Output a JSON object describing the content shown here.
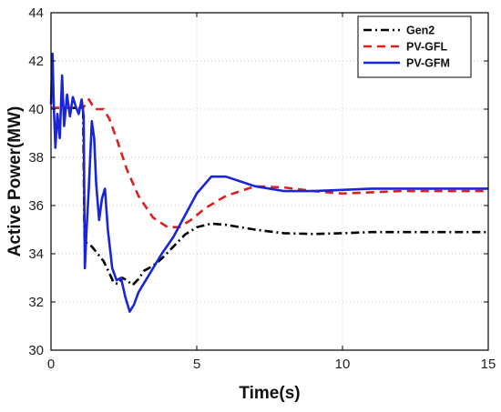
{
  "chart_data": {
    "type": "line",
    "xlabel": "Time(s)",
    "ylabel": "Active Power(MW)",
    "xlim": [
      0,
      15
    ],
    "ylim": [
      30,
      44
    ],
    "xticks": [
      "0",
      "5",
      "10",
      "15"
    ],
    "yticks": [
      "30",
      "32",
      "34",
      "36",
      "38",
      "40",
      "42",
      "44"
    ],
    "grid": true,
    "legend_position": "top-right",
    "series": [
      {
        "name": "Gen2",
        "color": "#000000",
        "style": "dash-dot",
        "points": [
          [
            0,
            40.05
          ],
          [
            1.1,
            40.05
          ],
          [
            1.15,
            34.5
          ],
          [
            1.4,
            34.3
          ],
          [
            1.6,
            34.0
          ],
          [
            1.8,
            33.7
          ],
          [
            2.0,
            33.2
          ],
          [
            2.15,
            32.8
          ],
          [
            2.3,
            32.75
          ],
          [
            2.45,
            33.0
          ],
          [
            2.6,
            32.9
          ],
          [
            2.8,
            32.7
          ],
          [
            3.0,
            32.95
          ],
          [
            3.2,
            33.3
          ],
          [
            3.5,
            33.5
          ],
          [
            3.8,
            33.8
          ],
          [
            4.2,
            34.3
          ],
          [
            4.6,
            34.8
          ],
          [
            5.0,
            35.1
          ],
          [
            5.5,
            35.25
          ],
          [
            6.0,
            35.2
          ],
          [
            7.0,
            35.0
          ],
          [
            8.0,
            34.85
          ],
          [
            9.0,
            34.82
          ],
          [
            10.0,
            34.85
          ],
          [
            11.0,
            34.9
          ],
          [
            12.0,
            34.9
          ],
          [
            13.0,
            34.9
          ],
          [
            14.0,
            34.9
          ],
          [
            15.0,
            34.9
          ]
        ]
      },
      {
        "name": "PV-GFL",
        "color": "#dd1f1f",
        "style": "dashed",
        "points": [
          [
            0,
            40.05
          ],
          [
            1.1,
            40.05
          ],
          [
            1.3,
            40.4
          ],
          [
            1.5,
            40.0
          ],
          [
            1.8,
            40.0
          ],
          [
            2.0,
            39.6
          ],
          [
            2.3,
            38.6
          ],
          [
            2.6,
            37.5
          ],
          [
            3.0,
            36.4
          ],
          [
            3.5,
            35.5
          ],
          [
            4.0,
            35.1
          ],
          [
            4.4,
            35.1
          ],
          [
            4.8,
            35.4
          ],
          [
            5.3,
            35.9
          ],
          [
            6.0,
            36.4
          ],
          [
            7.0,
            36.8
          ],
          [
            8.0,
            36.75
          ],
          [
            9.0,
            36.6
          ],
          [
            10.0,
            36.5
          ],
          [
            11.0,
            36.55
          ],
          [
            12.0,
            36.6
          ],
          [
            13.0,
            36.6
          ],
          [
            14.0,
            36.6
          ],
          [
            15.0,
            36.6
          ]
        ]
      },
      {
        "name": "PV-GFM",
        "color": "#1a24d8",
        "style": "solid",
        "points": [
          [
            0,
            40.2
          ],
          [
            0.05,
            42.3
          ],
          [
            0.1,
            40.0
          ],
          [
            0.15,
            38.4
          ],
          [
            0.22,
            39.8
          ],
          [
            0.3,
            38.8
          ],
          [
            0.38,
            41.4
          ],
          [
            0.45,
            39.3
          ],
          [
            0.55,
            40.6
          ],
          [
            0.65,
            39.7
          ],
          [
            0.75,
            40.5
          ],
          [
            0.85,
            40.1
          ],
          [
            0.95,
            39.8
          ],
          [
            1.05,
            40.4
          ],
          [
            1.12,
            39.7
          ],
          [
            1.16,
            33.4
          ],
          [
            1.22,
            35.0
          ],
          [
            1.3,
            36.8
          ],
          [
            1.4,
            39.5
          ],
          [
            1.48,
            38.8
          ],
          [
            1.55,
            36.9
          ],
          [
            1.65,
            35.4
          ],
          [
            1.75,
            36.3
          ],
          [
            1.85,
            36.7
          ],
          [
            1.95,
            35.0
          ],
          [
            2.1,
            33.4
          ],
          [
            2.25,
            32.9
          ],
          [
            2.4,
            33.0
          ],
          [
            2.55,
            32.2
          ],
          [
            2.7,
            31.6
          ],
          [
            2.85,
            31.9
          ],
          [
            3.0,
            32.4
          ],
          [
            3.2,
            32.8
          ],
          [
            3.5,
            33.4
          ],
          [
            3.8,
            34.0
          ],
          [
            4.2,
            34.7
          ],
          [
            4.6,
            35.6
          ],
          [
            5.0,
            36.5
          ],
          [
            5.5,
            37.2
          ],
          [
            6.0,
            37.2
          ],
          [
            6.5,
            37.0
          ],
          [
            7.0,
            36.8
          ],
          [
            7.5,
            36.7
          ],
          [
            8.0,
            36.6
          ],
          [
            9.0,
            36.6
          ],
          [
            10.0,
            36.65
          ],
          [
            11.0,
            36.7
          ],
          [
            12.0,
            36.7
          ],
          [
            13.0,
            36.7
          ],
          [
            14.0,
            36.7
          ],
          [
            15.0,
            36.7
          ]
        ]
      }
    ]
  }
}
